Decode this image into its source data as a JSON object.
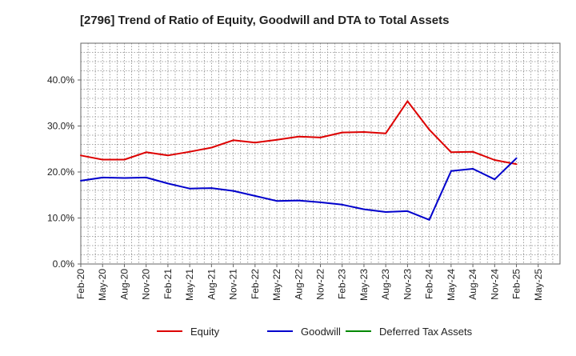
{
  "chart_data": {
    "type": "line",
    "title": "[2796]  Trend of Ratio of Equity, Goodwill and DTA to Total Assets",
    "xlabel": "",
    "ylabel": "",
    "ylim": [
      0,
      48
    ],
    "yticks": [
      0,
      10,
      20,
      30,
      40
    ],
    "ytick_labels": [
      "0.0%",
      "10.0%",
      "20.0%",
      "30.0%",
      "40.0%"
    ],
    "grid": true,
    "legend_position": "bottom-center",
    "x": [
      "Feb-20",
      "May-20",
      "Aug-20",
      "Nov-20",
      "Feb-21",
      "May-21",
      "Aug-21",
      "Nov-21",
      "Feb-22",
      "May-22",
      "Aug-22",
      "Nov-22",
      "Feb-23",
      "May-23",
      "Aug-23",
      "Nov-23",
      "Feb-24",
      "May-24",
      "Aug-24",
      "Nov-24",
      "Feb-25",
      "May-25"
    ],
    "series": [
      {
        "name": "Equity",
        "color": "#dd0000",
        "values": [
          23.6,
          22.7,
          22.7,
          24.3,
          23.6,
          24.4,
          25.3,
          26.9,
          26.4,
          27.0,
          27.7,
          27.5,
          28.6,
          28.7,
          28.4,
          35.4,
          29.2,
          24.3,
          24.4,
          22.6,
          21.7,
          null
        ]
      },
      {
        "name": "Goodwill",
        "color": "#0000cc",
        "values": [
          18.1,
          18.8,
          18.7,
          18.8,
          17.5,
          16.4,
          16.5,
          15.9,
          14.8,
          13.7,
          13.8,
          13.4,
          12.9,
          11.9,
          11.3,
          11.5,
          9.6,
          20.2,
          20.7,
          18.4,
          23.0,
          null
        ]
      },
      {
        "name": "Deferred Tax Assets",
        "color": "#008800",
        "values": [
          null,
          null,
          null,
          null,
          null,
          null,
          null,
          null,
          null,
          null,
          null,
          null,
          null,
          null,
          null,
          null,
          null,
          null,
          null,
          null,
          null,
          null
        ]
      }
    ]
  }
}
